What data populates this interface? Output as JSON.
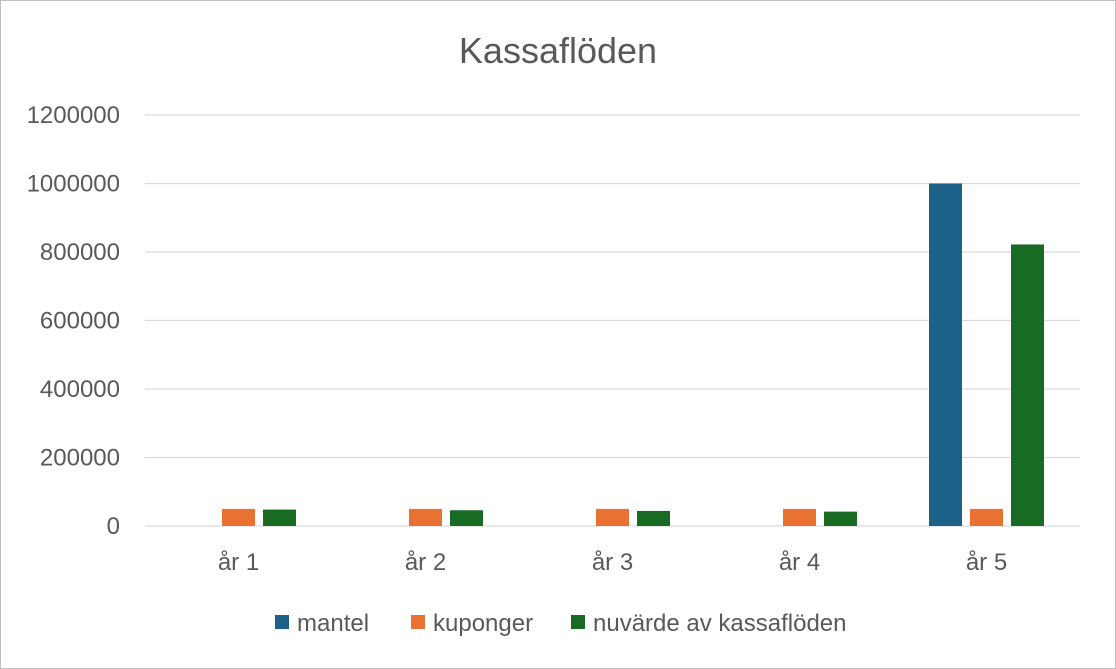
{
  "chart_data": {
    "type": "bar",
    "title": "Kassaflöden",
    "categories": [
      "år 1",
      "år 2",
      "år 3",
      "år 4",
      "år 5"
    ],
    "series": [
      {
        "name": "mantel",
        "color": "#1b6188",
        "values": [
          0,
          0,
          0,
          0,
          1000000
        ]
      },
      {
        "name": "kuponger",
        "color": "#e97132",
        "values": [
          50000,
          50000,
          50000,
          50000,
          50000
        ]
      },
      {
        "name": "nuvärde av kassaflöden",
        "color": "#196b24",
        "values": [
          48000,
          46000,
          44000,
          42000,
          822000
        ]
      }
    ],
    "ylim": [
      0,
      1200000
    ],
    "yticks": [
      "0",
      "200000",
      "400000",
      "600000",
      "800000",
      "1000000",
      "1200000"
    ],
    "grid": true,
    "legend_position": "bottom"
  }
}
